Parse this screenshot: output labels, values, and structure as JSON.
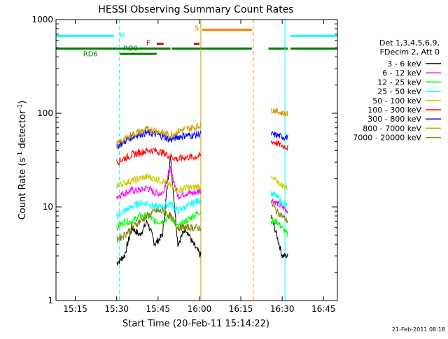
{
  "chart_data": {
    "type": "line",
    "title": "HESSI Observing Summary Count Rates",
    "xlabel": "Start Time (20-Feb-11 15:14:22)",
    "ylabel_main": "Count Rate (s",
    "ylabel_sup1": "-1",
    "ylabel_mid": " detector",
    "ylabel_sup2": "-1",
    "ylabel_end": ")",
    "y_scale": "log",
    "ylim": [
      1,
      1000
    ],
    "xlim_minutes": [
      -7,
      95
    ],
    "x_ticks": [
      {
        "t": 0,
        "label": "15:15"
      },
      {
        "t": 15,
        "label": "15:30"
      },
      {
        "t": 30,
        "label": "15:45"
      },
      {
        "t": 45,
        "label": "16:00"
      },
      {
        "t": 60,
        "label": "16:15"
      },
      {
        "t": 75,
        "label": "16:30"
      },
      {
        "t": 90,
        "label": "16:45"
      }
    ],
    "y_ticks": [
      {
        "v": 1,
        "label": "1"
      },
      {
        "v": 10,
        "label": "10"
      },
      {
        "v": 100,
        "label": "100"
      },
      {
        "v": 1000,
        "label": "1000"
      }
    ],
    "legend_header": [
      "Det 1,3,4,5,6,9,",
      "FDecim 2, Att 0"
    ],
    "series": [
      {
        "name": "3 - 6 keV",
        "color": "#000000",
        "segA": [
          2.5,
          3,
          6,
          5,
          7,
          4,
          5,
          35,
          4,
          6,
          4,
          3
        ],
        "segB": [
          8,
          5,
          3,
          3
        ]
      },
      {
        "name": "6 - 12 keV",
        "color": "#ff00ff",
        "segA": [
          13,
          14,
          15,
          15,
          16,
          14,
          14,
          26,
          13,
          14,
          14,
          15
        ],
        "segB": [
          12,
          11,
          10,
          9
        ]
      },
      {
        "name": "12 - 25 keV",
        "color": "#00ff00",
        "segA": [
          6,
          7,
          7,
          8,
          8,
          7,
          7,
          8,
          6,
          7,
          8,
          9
        ],
        "segB": [
          7,
          7,
          6,
          5
        ]
      },
      {
        "name": "25 - 50 keV",
        "color": "#00ffff",
        "segA": [
          8,
          9,
          10,
          11,
          11,
          10,
          10,
          11,
          9,
          10,
          11,
          12
        ],
        "segB": [
          14,
          13,
          11,
          10
        ]
      },
      {
        "name": "50 - 100 keV",
        "color": "#cccc00",
        "segA": [
          17,
          18,
          19,
          20,
          21,
          20,
          19,
          17,
          15,
          16,
          16,
          17
        ],
        "segB": [
          20,
          19,
          17,
          16
        ]
      },
      {
        "name": "100 - 300 keV",
        "color": "#ff0000",
        "segA": [
          30,
          33,
          36,
          38,
          40,
          40,
          38,
          35,
          32,
          34,
          34,
          35
        ],
        "segB": [
          50,
          48,
          45,
          43
        ]
      },
      {
        "name": "300 - 800 keV",
        "color": "#0000ff",
        "segA": [
          44,
          50,
          56,
          60,
          62,
          60,
          57,
          52,
          56,
          58,
          58,
          60
        ],
        "segB": [
          60,
          58,
          56,
          55
        ]
      },
      {
        "name": "800 - 7000 keV",
        "color": "#cc9900",
        "segA": [
          46,
          53,
          59,
          64,
          67,
          66,
          62,
          58,
          64,
          68,
          70,
          75
        ],
        "segB": [
          110,
          105,
          100,
          98
        ]
      },
      {
        "name": "7000 - 20000 keV",
        "color": "#808000",
        "segA": [
          4.5,
          5,
          6,
          7,
          8,
          9,
          9,
          8,
          6,
          6,
          6,
          6
        ],
        "segB": [
          11,
          9,
          8,
          7
        ]
      }
    ],
    "flags": [
      {
        "label": "N",
        "color": "#00ffff",
        "level": 670,
        "label_t": 17,
        "label_v": 690,
        "spans": [
          [
            -7,
            14
          ],
          [
            78,
            95
          ]
        ]
      },
      {
        "label": "S",
        "color": "#ff8000",
        "level": 780,
        "label_t": 44,
        "label_v": 820,
        "spans": [
          [
            46,
            64
          ]
        ]
      },
      {
        "label": "F",
        "color": "#cc0000",
        "level": 550,
        "label_t": 26.5,
        "label_v": 570,
        "spans": [
          [
            29.5,
            32
          ],
          [
            43,
            45
          ]
        ]
      },
      {
        "label": "RD0",
        "color": "#008000",
        "level": 490,
        "label_t": 20,
        "label_v": 500,
        "spans": [
          [
            -7,
            34.5
          ],
          [
            35,
            64
          ],
          [
            70,
            77
          ],
          [
            78,
            95
          ]
        ]
      },
      {
        "label": "RD6",
        "color": "#008000",
        "level": 430,
        "label_t": 5.5,
        "label_v": 435,
        "spans": [
          [
            16,
            29.5
          ]
        ]
      }
    ],
    "vlines": [
      {
        "t": -7,
        "color": "#00ffff",
        "style": "solid"
      },
      {
        "t": 16,
        "color": "#00ffff",
        "style": "dashed"
      },
      {
        "t": 45.5,
        "color": "#cc9900",
        "style": "solid"
      },
      {
        "t": 64.5,
        "color": "#ff8000",
        "style": "dashed"
      },
      {
        "t": 76,
        "color": "#00ffff",
        "style": "solid"
      },
      {
        "t": 95,
        "color": "#00ffff",
        "style": "dashed"
      }
    ],
    "timestamp": "21-Feb-2011 08:18"
  }
}
